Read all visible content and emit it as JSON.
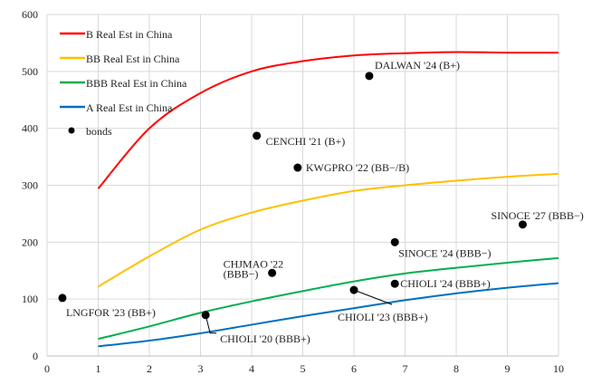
{
  "chart_data": {
    "type": "line",
    "title": "",
    "xlabel": "",
    "ylabel": "",
    "xlim": [
      0,
      10
    ],
    "ylim": [
      0,
      600
    ],
    "xticks": [
      "0",
      "1",
      "2",
      "3",
      "4",
      "5",
      "6",
      "7",
      "8",
      "9",
      "10"
    ],
    "yticks": [
      "0",
      "100",
      "200",
      "300",
      "400",
      "500",
      "600"
    ],
    "grid": true,
    "legend_position": "top-left",
    "x": [
      1,
      2,
      3,
      4,
      5,
      6,
      7,
      8,
      9,
      10
    ],
    "series": [
      {
        "name": "B Real Est in China",
        "color": "#ff0000",
        "values": [
          294,
          400,
          462,
          500,
          518,
          528,
          532,
          534,
          533,
          533
        ]
      },
      {
        "name": "BB Real Est in China",
        "color": "#ffc000",
        "values": [
          122,
          175,
          222,
          252,
          273,
          290,
          300,
          308,
          315,
          320
        ]
      },
      {
        "name": "BBB Real Est in China",
        "color": "#00b050",
        "values": [
          30,
          52,
          76,
          96,
          114,
          131,
          145,
          155,
          164,
          172
        ]
      },
      {
        "name": "A Real Est in China",
        "color": "#0070c0",
        "values": [
          17,
          27,
          40,
          55,
          70,
          84,
          98,
          110,
          120,
          128
        ]
      }
    ],
    "scatter": {
      "name": "bonds",
      "color": "#000000",
      "points": [
        {
          "label": "LNGFOR '23 (BB+)",
          "x": 0.3,
          "y": 102
        },
        {
          "label": "CHIOLI '20 (BBB+)",
          "x": 3.1,
          "y": 72
        },
        {
          "label": "CHJMAO '22",
          "label2": "(BBB−)",
          "x": 4.4,
          "y": 146
        },
        {
          "label": "CHIOLI '23 (BBB+)",
          "x": 6.0,
          "y": 116
        },
        {
          "label": "CHIOLI '24 (BBB+)",
          "x": 6.8,
          "y": 127
        },
        {
          "label": "SINOCE '24 (BBB−)",
          "x": 6.8,
          "y": 200
        },
        {
          "label": "SINOCE '27 (BBB−)",
          "x": 9.3,
          "y": 231
        },
        {
          "label": "KWGPRO '22 (BB−/B)",
          "x": 4.9,
          "y": 331
        },
        {
          "label": "CENCHI '21 (B+)",
          "x": 4.1,
          "y": 387
        },
        {
          "label": "DALWAN '24 (B+)",
          "x": 6.3,
          "y": 492
        }
      ]
    }
  }
}
